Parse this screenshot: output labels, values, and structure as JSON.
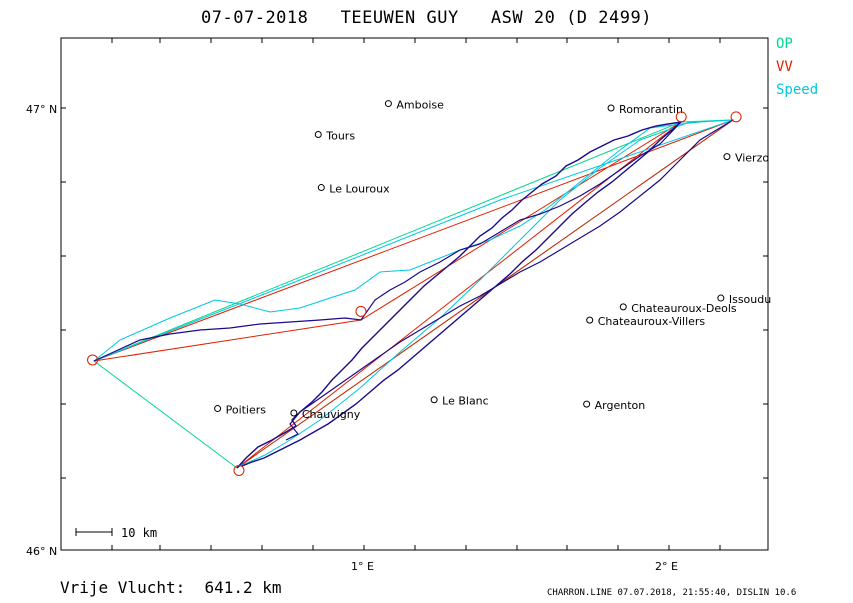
{
  "header": {
    "date": "07-07-2018",
    "pilot": "TEEUWEN GUY",
    "glider": "ASW 20 (D 2499)"
  },
  "legend": {
    "items": [
      {
        "label": "OP",
        "color": "#00d890"
      },
      {
        "label": "VV",
        "color": "#e02000"
      },
      {
        "label": "Speed",
        "color": "#00c8e0"
      }
    ]
  },
  "axes": {
    "lat_labels": [
      "47° N",
      "46° N"
    ],
    "lon_labels": [
      "1° E",
      "2° E"
    ]
  },
  "scale_bar": {
    "label": "10 km"
  },
  "places": [
    {
      "name": "Amboise",
      "lon": 1.08,
      "lat": 47.01
    },
    {
      "name": "Tours",
      "lon": 0.85,
      "lat": 46.94
    },
    {
      "name": "Le Louroux",
      "lon": 0.86,
      "lat": 46.82
    },
    {
      "name": "Romorantin",
      "lon": 1.81,
      "lat": 47.0
    },
    {
      "name": "Vierzo",
      "lon": 2.19,
      "lat": 46.89
    },
    {
      "name": "Issoudu",
      "lon": 2.17,
      "lat": 46.57
    },
    {
      "name": "Chateauroux-Deols",
      "lon": 1.85,
      "lat": 46.55
    },
    {
      "name": "Chateauroux-Villers",
      "lon": 1.74,
      "lat": 46.52
    },
    {
      "name": "Le Blanc",
      "lon": 1.23,
      "lat": 46.34
    },
    {
      "name": "Argenton",
      "lon": 1.73,
      "lat": 46.33
    },
    {
      "name": "Poitiers",
      "lon": 0.52,
      "lat": 46.32
    },
    {
      "name": "Chauvigny",
      "lon": 0.77,
      "lat": 46.31
    }
  ],
  "turnpoints": [
    {
      "lon": 0.59,
      "lat": 46.18
    },
    {
      "lon": 0.11,
      "lat": 46.43
    },
    {
      "lon": 0.99,
      "lat": 46.54
    },
    {
      "lon": 2.04,
      "lat": 46.98
    },
    {
      "lon": 2.22,
      "lat": 46.98
    }
  ],
  "footer": {
    "distance": "Vrije Vlucht:  641.2 km",
    "credit": "CHARRON.LINE 07.07.2018, 21:55:40, DISLIN 10.6"
  }
}
